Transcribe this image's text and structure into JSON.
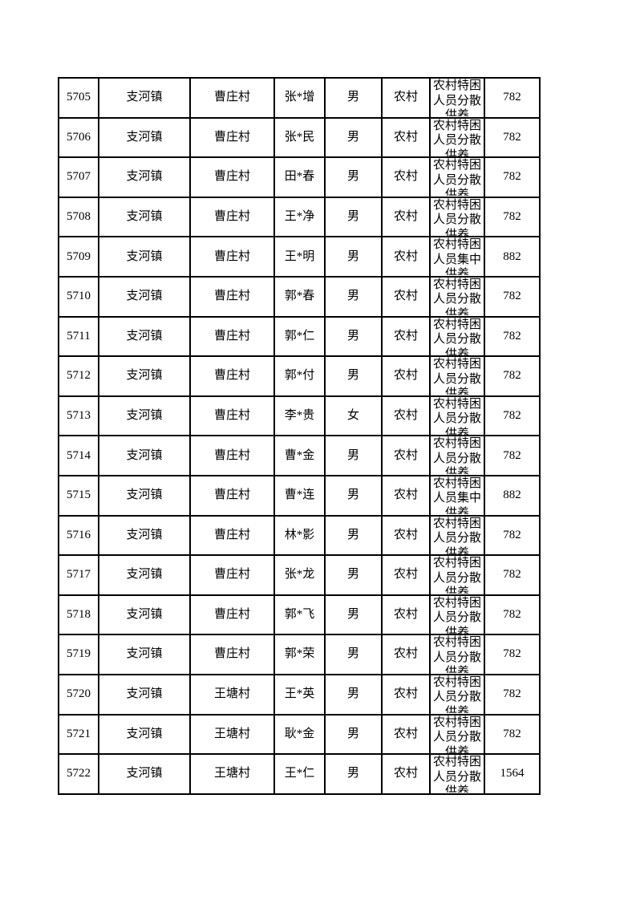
{
  "page": {
    "background_color": "#ffffff",
    "text_color": "#000000",
    "border_color": "#000000"
  },
  "table": {
    "column_keys": [
      "serial-number",
      "town",
      "village",
      "name",
      "gender",
      "area-type",
      "support-category",
      "amount"
    ],
    "rows": [
      [
        "5705",
        "支河镇",
        "曹庄村",
        "张*增",
        "男",
        "农村",
        "农村特困人员分散供养",
        "782"
      ],
      [
        "5706",
        "支河镇",
        "曹庄村",
        "张*民",
        "男",
        "农村",
        "农村特困人员分散供养",
        "782"
      ],
      [
        "5707",
        "支河镇",
        "曹庄村",
        "田*春",
        "男",
        "农村",
        "农村特困人员分散供养",
        "782"
      ],
      [
        "5708",
        "支河镇",
        "曹庄村",
        "王*净",
        "男",
        "农村",
        "农村特困人员分散供养",
        "782"
      ],
      [
        "5709",
        "支河镇",
        "曹庄村",
        "王*明",
        "男",
        "农村",
        "农村特困人员集中供养",
        "882"
      ],
      [
        "5710",
        "支河镇",
        "曹庄村",
        "郭*春",
        "男",
        "农村",
        "农村特困人员分散供养",
        "782"
      ],
      [
        "5711",
        "支河镇",
        "曹庄村",
        "郭*仁",
        "男",
        "农村",
        "农村特困人员分散供养",
        "782"
      ],
      [
        "5712",
        "支河镇",
        "曹庄村",
        "郭*付",
        "男",
        "农村",
        "农村特困人员分散供养",
        "782"
      ],
      [
        "5713",
        "支河镇",
        "曹庄村",
        "李*贵",
        "女",
        "农村",
        "农村特困人员分散供养",
        "782"
      ],
      [
        "5714",
        "支河镇",
        "曹庄村",
        "曹*金",
        "男",
        "农村",
        "农村特困人员分散供养",
        "782"
      ],
      [
        "5715",
        "支河镇",
        "曹庄村",
        "曹*连",
        "男",
        "农村",
        "农村特困人员集中供养",
        "882"
      ],
      [
        "5716",
        "支河镇",
        "曹庄村",
        "林*影",
        "男",
        "农村",
        "农村特困人员分散供养",
        "782"
      ],
      [
        "5717",
        "支河镇",
        "曹庄村",
        "张*龙",
        "男",
        "农村",
        "农村特困人员分散供养",
        "782"
      ],
      [
        "5718",
        "支河镇",
        "曹庄村",
        "郭*飞",
        "男",
        "农村",
        "农村特困人员分散供养",
        "782"
      ],
      [
        "5719",
        "支河镇",
        "曹庄村",
        "郭*荣",
        "男",
        "农村",
        "农村特困人员分散供养",
        "782"
      ],
      [
        "5720",
        "支河镇",
        "王塘村",
        "王*英",
        "男",
        "农村",
        "农村特困人员分散供养",
        "782"
      ],
      [
        "5721",
        "支河镇",
        "王塘村",
        "耿*金",
        "男",
        "农村",
        "农村特困人员分散供养",
        "782"
      ],
      [
        "5722",
        "支河镇",
        "王塘村",
        "王*仁",
        "男",
        "农村",
        "农村特困人员分散供养",
        "1564"
      ]
    ]
  }
}
